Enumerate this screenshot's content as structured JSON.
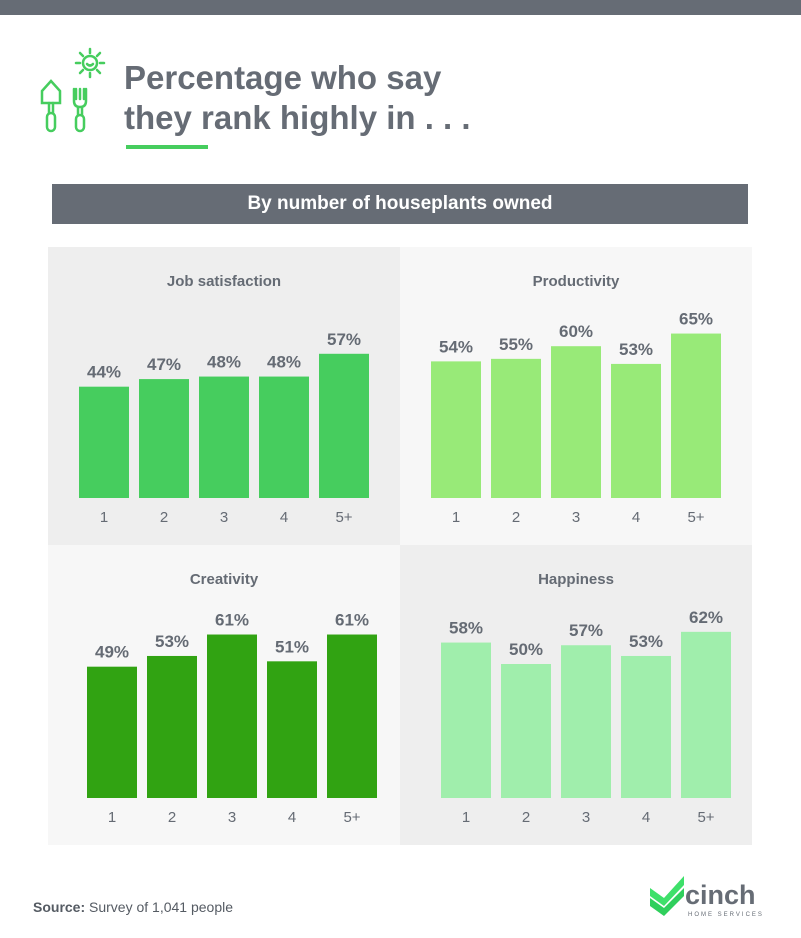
{
  "header": {
    "title": "Percentage who say\nthey rank highly in . . .",
    "subtitle": "By number of houseplants owned"
  },
  "chart_data": [
    {
      "type": "bar",
      "title": "Job satisfaction",
      "categories": [
        "1",
        "2",
        "3",
        "4",
        "5+"
      ],
      "values": [
        44,
        47,
        48,
        48,
        57
      ],
      "color": "#46cd5e",
      "unit": "%"
    },
    {
      "type": "bar",
      "title": "Productivity",
      "categories": [
        "1",
        "2",
        "3",
        "4",
        "5+"
      ],
      "values": [
        54,
        55,
        60,
        53,
        65
      ],
      "color": "#98ea78",
      "unit": "%"
    },
    {
      "type": "bar",
      "title": "Creativity",
      "categories": [
        "1",
        "2",
        "3",
        "4",
        "5+"
      ],
      "values": [
        49,
        53,
        61,
        51,
        61
      ],
      "color": "#31a312",
      "unit": "%"
    },
    {
      "type": "bar",
      "title": "Happiness",
      "categories": [
        "1",
        "2",
        "3",
        "4",
        "5+"
      ],
      "values": [
        58,
        50,
        57,
        53,
        62
      ],
      "color": "#a0eeac",
      "unit": "%"
    }
  ],
  "footer": {
    "source_label": "Source:",
    "source_text": " Survey of 1,041 people",
    "logo_text": "cinch",
    "logo_sub": "HOME SERVICES"
  }
}
